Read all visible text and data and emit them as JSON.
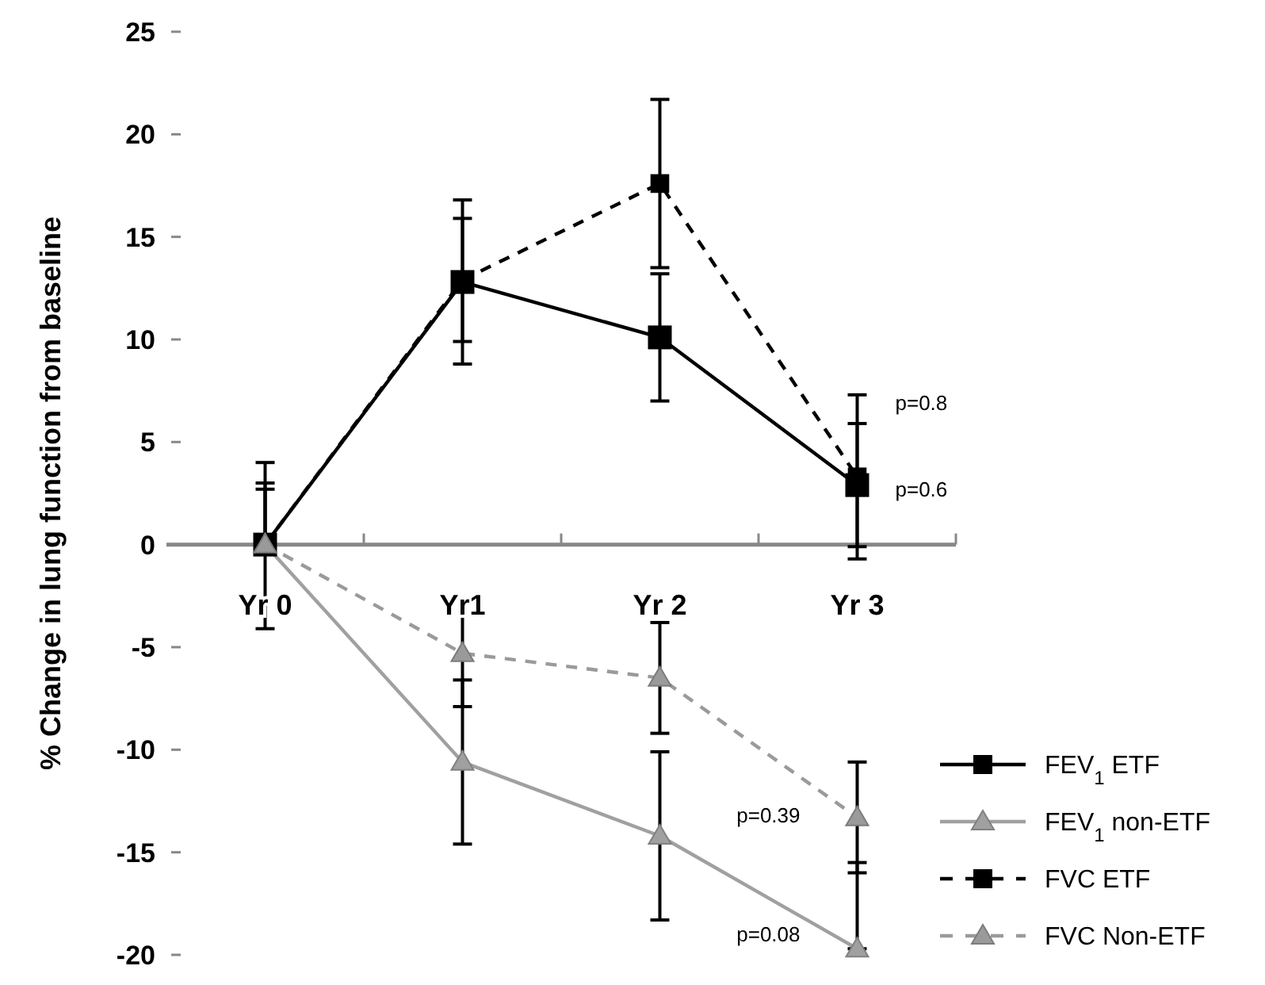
{
  "chart_data": {
    "type": "line",
    "ylabel": "% Change in lung function from baseline",
    "categories": [
      "Yr 0",
      "Yr1",
      "Yr 2",
      "Yr 3"
    ],
    "ylim": [
      -20,
      25
    ],
    "yticks": [
      -20,
      -15,
      -10,
      -5,
      0,
      5,
      10,
      15,
      20,
      25
    ],
    "grid": false,
    "legend": "bottom right",
    "series": [
      {
        "name": "FEV$_{1}$ ETF",
        "color": "#000000",
        "marker": "square",
        "line_style": "solid",
        "values": [
          0,
          12.8,
          10.1,
          2.9
        ],
        "errors": [
          [
            -4.1,
            4.0
          ],
          4.0,
          3.1,
          3.0
        ]
      },
      {
        "name": "FEV$_{1}$ non-ETF",
        "color": "#a0a0a0",
        "marker": "triangle",
        "line_style": "solid",
        "values": [
          0,
          -10.6,
          -14.2,
          -19.7
        ],
        "errors": [
          [
            0,
            2.7
          ],
          4.0,
          4.1,
          [
            -19.7,
            -15.5
          ]
        ]
      },
      {
        "name": "FVC ETF",
        "color": "#000000",
        "marker": "square",
        "line_style": "dashed",
        "values": [
          0,
          12.9,
          17.6,
          3.3
        ],
        "errors": [
          [
            0,
            3.0
          ],
          3.0,
          4.1,
          4.0
        ]
      },
      {
        "name": "FVC Non-ETF",
        "color": "#9a9a9a",
        "marker": "triangle",
        "line_style": "dashed",
        "values": [
          0,
          -5.3,
          -6.5,
          -13.3
        ],
        "errors": [
          null,
          2.6,
          2.7,
          2.7
        ]
      }
    ],
    "annotations": [
      {
        "text": "p=0.8",
        "x": "Yr 3",
        "y": 6.9
      },
      {
        "text": "p=0.6",
        "x": "Yr 3",
        "y": 2.7
      },
      {
        "text": "p=0.39",
        "x": "Yr 3",
        "y": -13.2
      },
      {
        "text": "p=0.08",
        "x": "Yr 3",
        "y": -19
      }
    ]
  }
}
